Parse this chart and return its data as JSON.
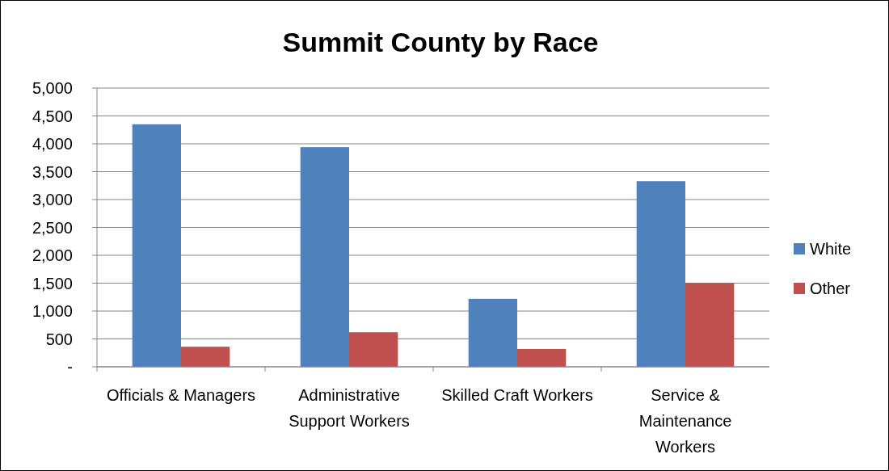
{
  "chart_data": {
    "type": "bar",
    "title": "Summit County by Race",
    "categories": [
      "Officials & Managers",
      "Administrative Support Workers",
      "Skilled Craft Workers",
      "Service & Maintenance Workers"
    ],
    "series": [
      {
        "name": "White",
        "color": "#4f81bd",
        "values": [
          4350,
          3940,
          1220,
          3330
        ]
      },
      {
        "name": "Other",
        "color": "#c0504d",
        "values": [
          360,
          620,
          320,
          1500
        ]
      }
    ],
    "ylim": [
      0,
      5000
    ],
    "yticks": [
      {
        "value": 0,
        "label": "-"
      },
      {
        "value": 500,
        "label": "500"
      },
      {
        "value": 1000,
        "label": "1,000"
      },
      {
        "value": 1500,
        "label": "1,500"
      },
      {
        "value": 2000,
        "label": "2,000"
      },
      {
        "value": 2500,
        "label": "2,500"
      },
      {
        "value": 3000,
        "label": "3,000"
      },
      {
        "value": 3500,
        "label": "3,500"
      },
      {
        "value": 4000,
        "label": "4,000"
      },
      {
        "value": 4500,
        "label": "4,500"
      },
      {
        "value": 5000,
        "label": "5,000"
      }
    ],
    "grid": "y",
    "legend": "right"
  }
}
